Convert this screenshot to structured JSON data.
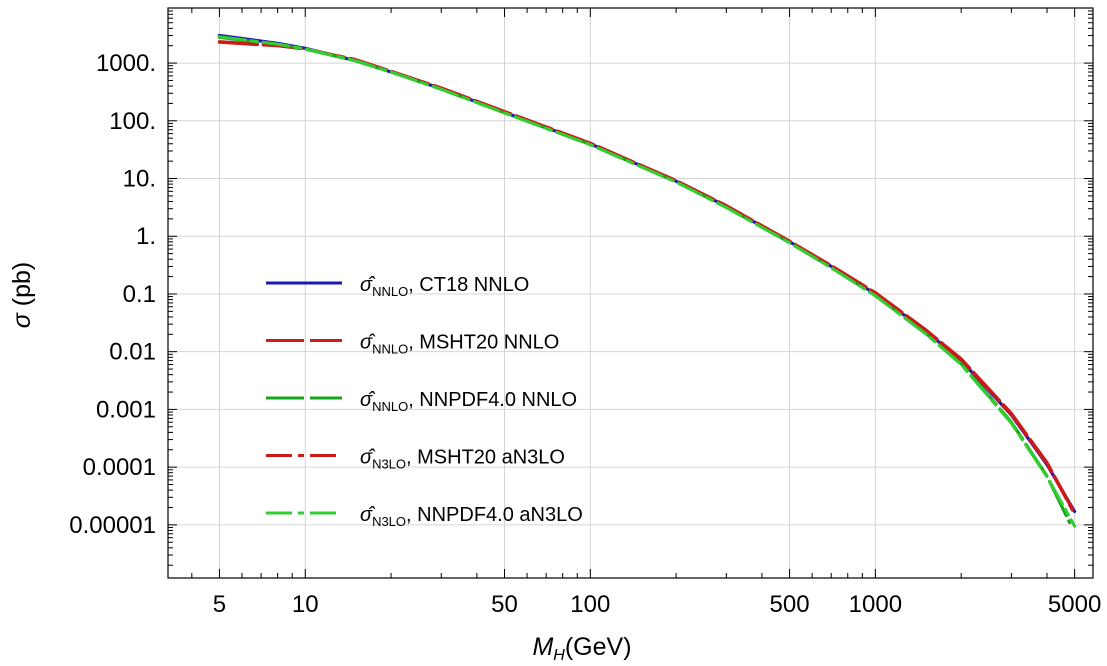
{
  "chart_data": {
    "type": "line",
    "xscale": "log",
    "yscale": "log",
    "xlabel": {
      "sym": "M",
      "sub": "H",
      "unit": "(GeV)"
    },
    "ylabel": {
      "sym": "σ",
      "unit": " (pb)"
    },
    "xlim": [
      3.3,
      5800
    ],
    "ylim": [
      1.2e-06,
      9000
    ],
    "grid": true,
    "legend_placement": "center-left",
    "x_ticks": [
      {
        "value": 5,
        "label": "5"
      },
      {
        "value": 10,
        "label": "10"
      },
      {
        "value": 50,
        "label": "50"
      },
      {
        "value": 100,
        "label": "100"
      },
      {
        "value": 500,
        "label": "500"
      },
      {
        "value": 1000,
        "label": "1000"
      },
      {
        "value": 5000,
        "label": "5000"
      }
    ],
    "y_ticks": [
      {
        "value": 1000,
        "label": "1000."
      },
      {
        "value": 100,
        "label": "100."
      },
      {
        "value": 10,
        "label": "10."
      },
      {
        "value": 1,
        "label": "1."
      },
      {
        "value": 0.1,
        "label": "0.1"
      },
      {
        "value": 0.01,
        "label": "0.01"
      },
      {
        "value": 0.001,
        "label": "0.001"
      },
      {
        "value": 0.0001,
        "label": "0.0001"
      },
      {
        "value": 1e-05,
        "label": "0.00001"
      }
    ],
    "series": [
      {
        "name": {
          "hat": "σ̂",
          "sub": "NNLO",
          "text": ", CT18 NNLO"
        },
        "color": "#1a1ab3",
        "style": "solid",
        "x": [
          5,
          8,
          10,
          15,
          20,
          30,
          50,
          100,
          200,
          300,
          500,
          700,
          1000,
          1500,
          2000,
          3000,
          4000,
          5000
        ],
        "y": [
          3000,
          2200,
          1800,
          1100,
          700,
          360,
          140,
          40,
          9,
          3.3,
          0.8,
          0.3,
          0.1,
          0.023,
          0.007,
          0.0008,
          0.00011,
          1.7e-05
        ]
      },
      {
        "name": {
          "hat": "σ̂",
          "sub": "NNLO",
          "text": ", MSHT20 NNLO"
        },
        "color": "#cc1a1a",
        "style": "longdash",
        "x": [
          5,
          8,
          10,
          15,
          20,
          30,
          50,
          100,
          200,
          300,
          500,
          700,
          1000,
          1500,
          2000,
          3000,
          4000,
          5000
        ],
        "y": [
          2300,
          2000,
          1750,
          1150,
          720,
          370,
          145,
          41,
          9.2,
          3.4,
          0.82,
          0.31,
          0.105,
          0.024,
          0.0075,
          0.00085,
          0.00012,
          1.6e-05
        ]
      },
      {
        "name": {
          "hat": "σ̂",
          "sub": "NNLO",
          "text": ", NNPDF4.0 NNLO"
        },
        "color": "#1aa31a",
        "style": "longdash",
        "x": [
          5,
          8,
          10,
          15,
          20,
          30,
          50,
          100,
          200,
          300,
          500,
          700,
          1000,
          1500,
          2000,
          3000,
          4000,
          4800
        ],
        "y": [
          2800,
          2100,
          1750,
          1100,
          700,
          355,
          138,
          39,
          8.8,
          3.2,
          0.78,
          0.29,
          0.095,
          0.021,
          0.0062,
          0.0006,
          7e-05,
          1.1e-05
        ]
      },
      {
        "name": {
          "hat": "σ̂",
          "sub": "N3LO",
          "text": ", MSHT20 aN3LO"
        },
        "color": "#cc1a1a",
        "style": "dashdot",
        "x": [
          5,
          8,
          10,
          15,
          20,
          30,
          50,
          100,
          200,
          300,
          500,
          700,
          1000,
          1500,
          2000,
          3000,
          4000,
          5000
        ],
        "y": [
          2350,
          2020,
          1760,
          1150,
          720,
          368,
          144,
          41,
          9.1,
          3.35,
          0.81,
          0.305,
          0.103,
          0.0235,
          0.0073,
          0.00082,
          0.000115,
          1.55e-05
        ]
      },
      {
        "name": {
          "hat": "σ̂",
          "sub": "N3LO",
          "text": ", NNPDF4.0 aN3LO"
        },
        "color": "#33cc33",
        "style": "dashdot",
        "x": [
          5,
          8,
          10,
          15,
          20,
          30,
          50,
          100,
          200,
          300,
          500,
          700,
          1000,
          1500,
          2000,
          3000,
          4000,
          5000
        ],
        "y": [
          2850,
          2120,
          1760,
          1100,
          700,
          352,
          137,
          38.5,
          8.7,
          3.15,
          0.77,
          0.285,
          0.093,
          0.0205,
          0.006,
          0.00058,
          6.8e-05,
          9.5e-06
        ]
      }
    ]
  }
}
